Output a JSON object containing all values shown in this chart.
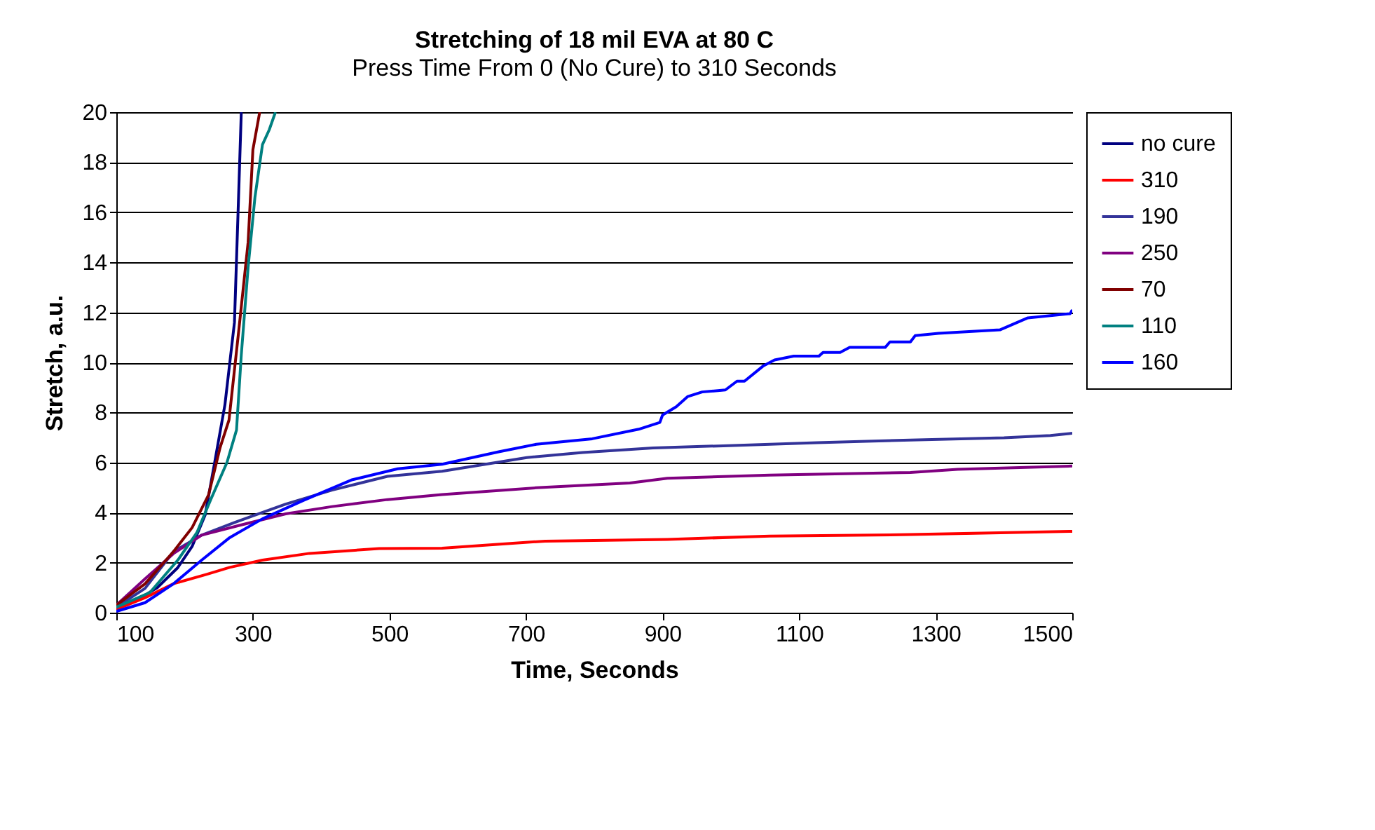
{
  "chart_data": {
    "type": "line",
    "title": "Stretching of 18 mil EVA at 80 C",
    "subtitle": "Press Time From 0 (No Cure) to 310 Seconds",
    "xlabel": "Time, Seconds",
    "ylabel": "Stretch, a.u.",
    "xlim": [
      100,
      1500
    ],
    "xticks": [
      100,
      300,
      500,
      700,
      900,
      1100,
      1300,
      1500
    ],
    "ylim": [
      0,
      20
    ],
    "yticks": [
      0,
      2,
      4,
      6,
      8,
      10,
      12,
      14,
      16,
      18,
      20
    ],
    "grid": "y",
    "legend": "right",
    "marker": "none",
    "line_style": "solid",
    "series": [
      {
        "name": "no cure",
        "color": "#000080",
        "x": [
          100,
          130,
          160,
          190,
          211,
          230,
          244,
          259,
          273,
          279,
          283
        ],
        "values": [
          0.2,
          0.5,
          1.0,
          1.8,
          2.65,
          3.9,
          6.0,
          8.3,
          11.6,
          16.6,
          20
        ]
      },
      {
        "name": "310",
        "color": "#ff0000",
        "x": [
          100,
          142,
          184,
          232,
          266,
          314,
          383,
          485,
          577,
          728,
          907,
          1057,
          1263,
          1500
        ],
        "values": [
          0.13,
          0.6,
          1.16,
          1.53,
          1.81,
          2.1,
          2.37,
          2.56,
          2.58,
          2.86,
          2.93,
          3.06,
          3.12,
          3.25
        ]
      },
      {
        "name": "190",
        "color": "#333399",
        "x": [
          100,
          142,
          184,
          225,
          273,
          300,
          348,
          416,
          497,
          577,
          701,
          783,
          886,
          989,
          1126,
          1263,
          1400,
          1468,
          1500
        ],
        "values": [
          0.22,
          0.97,
          2.45,
          3.1,
          3.6,
          3.87,
          4.34,
          4.9,
          5.45,
          5.65,
          6.2,
          6.4,
          6.58,
          6.67,
          6.79,
          6.9,
          6.99,
          7.08,
          7.17
        ]
      },
      {
        "name": "250",
        "color": "#800080",
        "x": [
          100,
          142,
          184,
          225,
          279,
          348,
          416,
          497,
          577,
          715,
          852,
          907,
          1057,
          1263,
          1332,
          1500
        ],
        "values": [
          0.3,
          1.35,
          2.37,
          3.1,
          3.48,
          3.95,
          4.24,
          4.52,
          4.72,
          4.99,
          5.18,
          5.37,
          5.5,
          5.6,
          5.73,
          5.86
        ]
      },
      {
        "name": "70",
        "color": "#800000",
        "x": [
          100,
          142,
          184,
          211,
          235,
          252,
          265,
          279,
          293,
          300,
          310
        ],
        "values": [
          0.3,
          1.15,
          2.45,
          3.4,
          4.7,
          6.6,
          7.7,
          11.2,
          14.8,
          18.5,
          20
        ]
      },
      {
        "name": "110",
        "color": "#008080",
        "x": [
          100,
          149,
          190,
          218,
          238,
          262,
          276,
          283,
          293,
          303,
          314,
          324,
          333
        ],
        "values": [
          0.22,
          0.8,
          2.1,
          3.2,
          4.5,
          6.0,
          7.3,
          10.3,
          13.8,
          16.6,
          18.7,
          19.3,
          20
        ]
      },
      {
        "name": "160",
        "color": "#0000ff",
        "x": [
          100,
          142,
          184,
          225,
          266,
          314,
          375,
          444,
          512,
          577,
          660,
          715,
          797,
          865,
          896,
          900,
          920,
          937,
          958,
          992,
          1009,
          1020,
          1047,
          1064,
          1092,
          1129,
          1135,
          1160,
          1174,
          1226,
          1233,
          1263,
          1270,
          1304,
          1394,
          1435,
          1497,
          1500
        ],
        "values": [
          0.05,
          0.4,
          1.16,
          2.1,
          3.0,
          3.75,
          4.5,
          5.3,
          5.75,
          5.93,
          6.43,
          6.73,
          6.95,
          7.33,
          7.6,
          7.9,
          8.23,
          8.64,
          8.82,
          8.9,
          9.25,
          9.25,
          9.85,
          10.1,
          10.25,
          10.25,
          10.4,
          10.4,
          10.6,
          10.6,
          10.82,
          10.82,
          11.07,
          11.16,
          11.3,
          11.78,
          11.95,
          12.1
        ]
      }
    ]
  }
}
